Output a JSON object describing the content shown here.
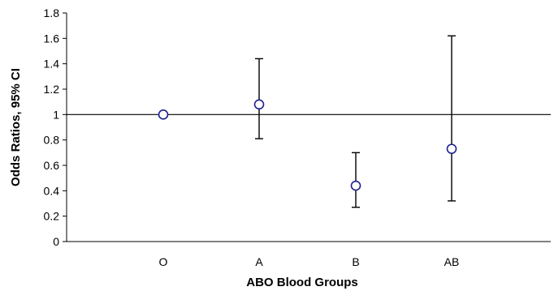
{
  "chart_data": {
    "type": "scatter",
    "subtype": "point-estimates-with-error-bars",
    "categories": [
      "O",
      "A",
      "B",
      "AB"
    ],
    "series": [
      {
        "values": [
          1.0,
          1.08,
          0.44,
          0.73
        ],
        "lower": [
          null,
          0.81,
          0.27,
          0.32
        ],
        "upper": [
          null,
          1.44,
          0.7,
          1.62
        ]
      }
    ],
    "xlabel": "ABO Blood Groups",
    "ylabel": "Odds Ratios, 95% CI",
    "ylim": [
      0,
      1.8
    ],
    "yticks": [
      "0",
      "0.2",
      "0.4",
      "0.6",
      "0.8",
      "1",
      "1.2",
      "1.4",
      "1.6",
      "1.8"
    ],
    "reference_line": 1,
    "grid": false,
    "colors": {
      "marker_stroke": "#1f1f8f",
      "marker_fill": "#ffffff",
      "axis": "#000000",
      "error_bar": "#000000",
      "reference_line": "#000000"
    }
  }
}
